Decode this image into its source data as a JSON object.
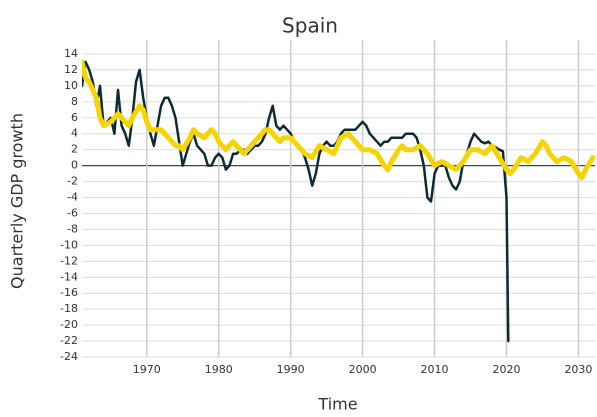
{
  "chart_data": {
    "type": "line",
    "title": "Spain",
    "x_label": "Time",
    "y_label": "Quarterly GDP growth",
    "xlim": [
      1961,
      2032.3
    ],
    "ylim": [
      -24,
      15
    ],
    "xticks": [
      1970,
      1980,
      1990,
      2000,
      2010,
      2020,
      2030
    ],
    "yticks": [
      -24,
      -22,
      -20,
      -18,
      -16,
      -14,
      -12,
      -10,
      -8,
      -6,
      -4,
      -2,
      0,
      2,
      4,
      6,
      8,
      10,
      12,
      14
    ],
    "grid": true,
    "series": [
      {
        "color": "#0d2b33",
        "width": 2.5,
        "x": [
          1961,
          1961.5,
          1962,
          1962.5,
          1963,
          1963.5,
          1964,
          1965,
          1965.5,
          1966,
          1966.5,
          1967,
          1967.5,
          1968,
          1968.5,
          1969,
          1969.5,
          1970,
          1970.5,
          1971,
          1971.5,
          1972,
          1972.5,
          1973,
          1973.5,
          1974,
          1974.5,
          1975,
          1975.5,
          1976,
          1976.5,
          1977,
          1977.5,
          1978,
          1978.5,
          1979,
          1979.5,
          1980,
          1980.5,
          1981,
          1981.5,
          1982,
          1982.5,
          1983,
          1983.5,
          1984,
          1985,
          1985.5,
          1986,
          1986.5,
          1987,
          1987.5,
          1988,
          1988.5,
          1989,
          1989.5,
          1990,
          1990.5,
          1991,
          1991.5,
          1992,
          1992.5,
          1993,
          1993.5,
          1994,
          1994.5,
          1995,
          1995.5,
          1996,
          1996.5,
          1997,
          1997.5,
          1998,
          1998.5,
          1999,
          1999.5,
          2000,
          2000.5,
          2001,
          2001.5,
          2002,
          2002.5,
          2003,
          2003.5,
          2004,
          2004.5,
          2005,
          2005.5,
          2006,
          2006.5,
          2007,
          2007.5,
          2008,
          2008.5,
          2009,
          2009.5,
          2010,
          2010.5,
          2011,
          2011.5,
          2012,
          2012.5,
          2013,
          2013.5,
          2014,
          2014.5,
          2015,
          2015.5,
          2016,
          2016.5,
          2017,
          2017.5,
          2018,
          2018.5,
          2019,
          2019.5,
          2020,
          2020.25
        ],
        "values": [
          10,
          13,
          12,
          10.5,
          7.5,
          10,
          5,
          6,
          4,
          9.5,
          5,
          4,
          2.5,
          6,
          10.5,
          12,
          8.5,
          6,
          4,
          2.5,
          5,
          7.5,
          8.5,
          8.5,
          7.5,
          6,
          3,
          0,
          1.5,
          3,
          4,
          2.5,
          2,
          1.5,
          0,
          0,
          1,
          1.5,
          1,
          -0.5,
          0,
          1.5,
          1.5,
          2,
          2,
          1.5,
          2.5,
          2.5,
          3,
          4,
          6,
          7.5,
          5,
          4.5,
          5,
          4.5,
          4,
          3,
          2.5,
          2,
          1,
          -0.5,
          -2.5,
          -1,
          1.5,
          2.5,
          3,
          2.5,
          2.5,
          3,
          4,
          4.5,
          4.5,
          4.5,
          4.5,
          5,
          5.5,
          5,
          4,
          3.5,
          3,
          2.5,
          3,
          3,
          3.5,
          3.5,
          3.5,
          3.5,
          4,
          4,
          4,
          3.5,
          2,
          0,
          -4,
          -4.5,
          -1,
          0,
          0,
          0,
          -1.5,
          -2.5,
          -3,
          -2,
          0.5,
          1.5,
          3,
          4,
          3.5,
          3,
          2.8,
          3,
          2.5,
          2.3,
          2,
          1.8,
          -4,
          -22
        ]
      },
      {
        "color": "#f5d400",
        "width": 5,
        "x": [
          1961,
          1961.5,
          1962,
          1963,
          1963.5,
          1964,
          1965,
          1966,
          1967,
          1967.5,
          1968,
          1969,
          1969.5,
          1970,
          1970.5,
          1971,
          1972,
          1972.5,
          1973,
          1974,
          1974.5,
          1975,
          1976,
          1976.5,
          1977,
          1978,
          1978.5,
          1979,
          1979.5,
          1980,
          1981,
          1981.5,
          1982,
          1983,
          1983.5,
          1984,
          1985,
          1986,
          1986.5,
          1987,
          1988,
          1988.5,
          1989,
          1990,
          1991,
          1992,
          1993,
          1994,
          1995,
          1996,
          1997,
          1998,
          1999,
          2000,
          2001,
          2002,
          2003,
          2003.5,
          2004,
          2005,
          2005.5,
          2006,
          2007,
          2008,
          2009,
          2010,
          2011,
          2012,
          2013,
          2014,
          2015,
          2016,
          2017,
          2018,
          2019,
          2020,
          2020.5,
          2021,
          2022,
          2023,
          2024,
          2025,
          2025.5,
          2026,
          2027,
          2028,
          2029,
          2030,
          2030.5,
          2031,
          2032
        ],
        "values": [
          13,
          11,
          10.5,
          8.5,
          6,
          5,
          5.5,
          6.5,
          5.5,
          5,
          6,
          7.5,
          7,
          5.5,
          4.5,
          4.5,
          4.5,
          4,
          3.5,
          2.5,
          2.5,
          2,
          3.5,
          4.5,
          4,
          3.5,
          4,
          4.5,
          4,
          3,
          2,
          2.5,
          3,
          2,
          1.5,
          2,
          3,
          4,
          4.5,
          4.5,
          3.5,
          3,
          3.5,
          3.5,
          2.5,
          1.5,
          1,
          2.5,
          2,
          1.5,
          3.5,
          4,
          3,
          2,
          2,
          1.5,
          0,
          -0.5,
          0.5,
          2,
          2.5,
          2,
          2,
          2.5,
          1.5,
          0,
          0.5,
          0,
          -0.5,
          0.5,
          2,
          2,
          1.5,
          2.5,
          1,
          -0.5,
          -1,
          -0.5,
          1,
          0.5,
          1.5,
          3,
          2.5,
          1.5,
          0.5,
          1,
          0.5,
          -1,
          -1.5,
          -0.5,
          1
        ]
      }
    ]
  }
}
